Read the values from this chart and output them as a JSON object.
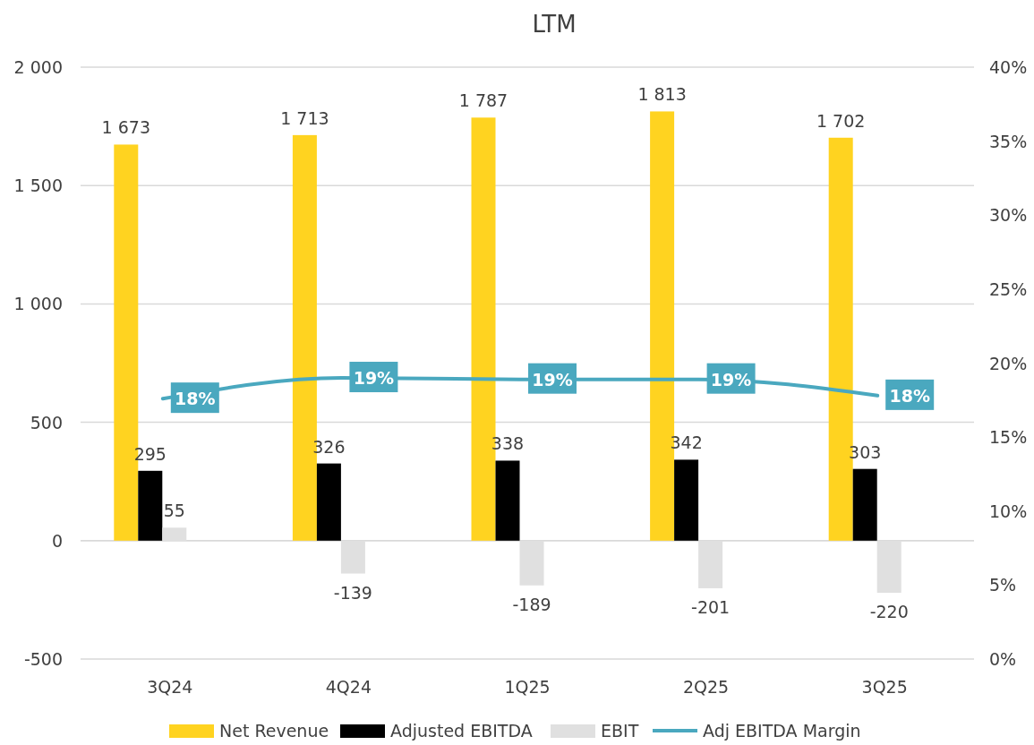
{
  "chart_data": {
    "type": "bar",
    "title": "LTM",
    "categories": [
      "3Q24",
      "4Q24",
      "1Q25",
      "2Q25",
      "3Q25"
    ],
    "series": [
      {
        "name": "Net Revenue",
        "color": "#ffd320",
        "values": [
          1673,
          1713,
          1787,
          1813,
          1702
        ],
        "value_labels": [
          "1 673",
          "1 713",
          "1 787",
          "1 813",
          "1 702"
        ]
      },
      {
        "name": "Adjusted EBITDA",
        "color": "#000000",
        "values": [
          295,
          326,
          338,
          342,
          303
        ],
        "value_labels": [
          "295",
          "326",
          "338",
          "342",
          "303"
        ]
      },
      {
        "name": "EBIT",
        "color": "#e0e0e0",
        "values": [
          55,
          -139,
          -189,
          -201,
          -220
        ],
        "value_labels": [
          "55",
          "-139",
          "-189",
          "-201",
          "-220"
        ]
      },
      {
        "name": "Adj EBITDA Margin",
        "type": "line",
        "axis": "y2",
        "color": "#4aa8bf",
        "values": [
          17.6,
          19.0,
          18.9,
          18.9,
          17.8
        ],
        "value_labels": [
          "18%",
          "19%",
          "19%",
          "19%",
          "18%"
        ]
      }
    ],
    "ylim": [
      -500,
      2000
    ],
    "yticks": [
      {
        "value": -500,
        "label": "-500"
      },
      0,
      500,
      {
        "value": 1000,
        "label": "1 000"
      },
      {
        "value": 1500,
        "label": "1 500"
      },
      {
        "value": 2000,
        "label": "2 000"
      }
    ],
    "y2lim": [
      0,
      40
    ],
    "y2ticks": [
      {
        "value": 0,
        "label": "0%"
      },
      {
        "value": 5,
        "label": "5%"
      },
      {
        "value": 10,
        "label": "10%"
      },
      {
        "value": 15,
        "label": "15%"
      },
      {
        "value": 20,
        "label": "20%"
      },
      {
        "value": 25,
        "label": "25%"
      },
      {
        "value": 30,
        "label": "30%"
      },
      {
        "value": 35,
        "label": "35%"
      },
      {
        "value": 40,
        "label": "40%"
      }
    ],
    "grid": "y",
    "legend": "bottom"
  }
}
